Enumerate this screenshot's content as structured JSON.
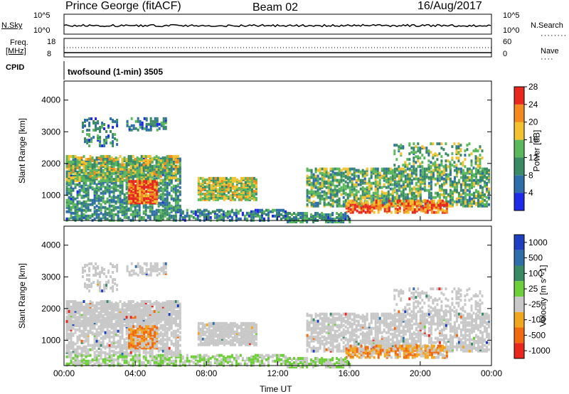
{
  "header": {
    "station": "Prince George (fitACF)",
    "beam": "Beam 02",
    "date": "16/Aug/2017"
  },
  "panel_labels": {
    "nsky": "N.Sky",
    "nsky_top": "10^5",
    "nsky_bot": "10^0",
    "nsearch": "N.Search",
    "nsearch_top": "10^5",
    "nsearch_bot": "10^0",
    "freq": "Freq.",
    "freq_unit": "[MHz]",
    "freq_top": "18",
    "freq_bot": "8",
    "nave": "Nave",
    "nave_top": "60",
    "nave_bot": "0",
    "cpid": "CPID",
    "cpid_text": "twofsound (1-min) 3505"
  },
  "chart_data": [
    {
      "type": "heatmap",
      "name": "power",
      "ylabel": "Slant Range [km]",
      "y_ticks": [
        "1000",
        "2000",
        "3000",
        "4000"
      ],
      "ylim": [
        200,
        4600
      ],
      "colorbar": {
        "label": "Power [dB]",
        "ticks": [
          "4",
          "8",
          "12",
          "16",
          "20",
          "24",
          "28"
        ],
        "colors": [
          "#1e2be6",
          "#2f6ea8",
          "#3a8a66",
          "#5cb85c",
          "#f2c230",
          "#f28a1f",
          "#e8281e"
        ]
      }
    },
    {
      "type": "heatmap",
      "name": "velocity",
      "ylabel": "Slant Range [km]",
      "y_ticks": [
        "1000",
        "2000",
        "3000",
        "4000"
      ],
      "ylim": [
        200,
        4600
      ],
      "xlabel": "Time UT",
      "x_ticks": [
        "00:00",
        "04:00",
        "08:00",
        "12:00",
        "16:00",
        "20:00",
        "00:00"
      ],
      "colorbar": {
        "label": "Velocity [m s^-1]",
        "ticks": [
          "1000",
          "500",
          "100",
          "25",
          "-25",
          "-100",
          "-500",
          "-1000"
        ],
        "colors": [
          "#1e3fbf",
          "#2f6ea8",
          "#3a8a66",
          "#6fcf3a",
          "#c8c8c8",
          "#f2a51f",
          "#f26a10",
          "#e8281e"
        ]
      }
    }
  ],
  "colors": {
    "axis": "#000000",
    "ground_scatter": "#c8c8c8"
  }
}
